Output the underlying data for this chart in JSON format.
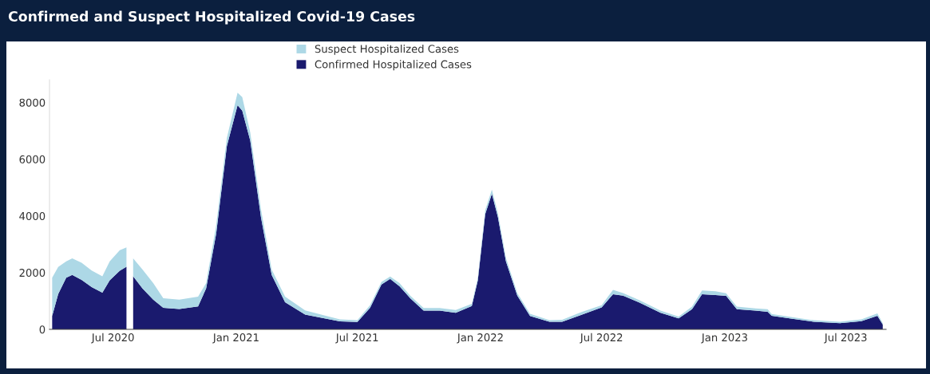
{
  "chart_data": {
    "type": "area",
    "stacked": true,
    "title": "Confirmed and Suspect Hospitalized Covid-19 Cases",
    "x": [
      "2020-04-01",
      "2020-04-10",
      "2020-04-22",
      "2020-05-01",
      "2020-05-15",
      "2020-05-30",
      "2020-06-15",
      "2020-06-26",
      "2020-07-11",
      "2020-07-21",
      "2020-07-25",
      "2020-07-31",
      "2020-08-14",
      "2020-08-30",
      "2020-09-14",
      "2020-10-08",
      "2020-11-05",
      "2020-11-17",
      "2020-12-02",
      "2020-12-18",
      "2021-01-03",
      "2021-01-10",
      "2021-01-22",
      "2021-02-07",
      "2021-02-23",
      "2021-03-15",
      "2021-04-14",
      "2021-05-16",
      "2021-06-05",
      "2021-07-01",
      "2021-07-20",
      "2021-08-06",
      "2021-08-19",
      "2021-09-02",
      "2021-09-18",
      "2021-10-08",
      "2021-11-01",
      "2021-11-25",
      "2021-12-19",
      "2021-12-28",
      "2022-01-08",
      "2022-01-18",
      "2022-01-27",
      "2022-02-08",
      "2022-02-25",
      "2022-03-16",
      "2022-04-14",
      "2022-05-03",
      "2022-06-01",
      "2022-07-01",
      "2022-07-18",
      "2022-08-02",
      "2022-08-26",
      "2022-09-27",
      "2022-10-24",
      "2022-11-13",
      "2022-11-28",
      "2022-12-18",
      "2023-01-03",
      "2023-01-19",
      "2023-02-16",
      "2023-03-06",
      "2023-03-12",
      "2023-04-12",
      "2023-05-14",
      "2023-06-22",
      "2023-07-24",
      "2023-08-17",
      "2023-08-25"
    ],
    "series": [
      {
        "name": "Confirmed Hospitalized Cases",
        "color": "#1a1a6e",
        "values": [
          470,
          1245,
          1820,
          1920,
          1740,
          1490,
          1290,
          1730,
          2065,
          2210,
          null,
          1870,
          1440,
          1050,
          760,
          715,
          810,
          1440,
          3370,
          6460,
          7900,
          7710,
          6650,
          3950,
          1920,
          955,
          520,
          375,
          280,
          260,
          760,
          1580,
          1775,
          1520,
          1100,
          660,
          660,
          580,
          825,
          1730,
          4060,
          4780,
          3960,
          2400,
          1190,
          470,
          270,
          270,
          510,
          775,
          1240,
          1190,
          950,
          580,
          390,
          710,
          1240,
          1210,
          1180,
          710,
          660,
          620,
          480,
          370,
          270,
          220,
          290,
          480,
          170
        ]
      },
      {
        "name": "Suspect Hospitalized Cases",
        "color": "#add8e6",
        "values": [
          1350,
          955,
          580,
          580,
          610,
          580,
          580,
          670,
          725,
          680,
          null,
          630,
          670,
          580,
          340,
          335,
          340,
          190,
          290,
          290,
          440,
          480,
          290,
          290,
          190,
          195,
          145,
          95,
          70,
          60,
          90,
          90,
          85,
          110,
          90,
          90,
          90,
          100,
          75,
          90,
          140,
          150,
          140,
          120,
          90,
          80,
          50,
          70,
          100,
          75,
          150,
          90,
          80,
          80,
          60,
          90,
          130,
          130,
          90,
          90,
          80,
          90,
          60,
          60,
          50,
          50,
          60,
          80,
          50
        ]
      }
    ],
    "xlim": [
      "2020-03-28",
      "2023-08-30"
    ],
    "xticks": [
      {
        "value": "2020-07-01",
        "label": "Jul 2020"
      },
      {
        "value": "2021-01-01",
        "label": "Jan 2021"
      },
      {
        "value": "2021-07-01",
        "label": "Jul 2021"
      },
      {
        "value": "2022-01-01",
        "label": "Jan 2022"
      },
      {
        "value": "2022-07-01",
        "label": "Jul 2022"
      },
      {
        "value": "2023-01-01",
        "label": "Jan 2023"
      },
      {
        "value": "2023-07-01",
        "label": "Jul 2023"
      }
    ],
    "ylim": [
      0,
      8800
    ],
    "yticks": [
      0,
      2000,
      4000,
      6000,
      8000
    ],
    "legend": "top",
    "grid": false
  }
}
